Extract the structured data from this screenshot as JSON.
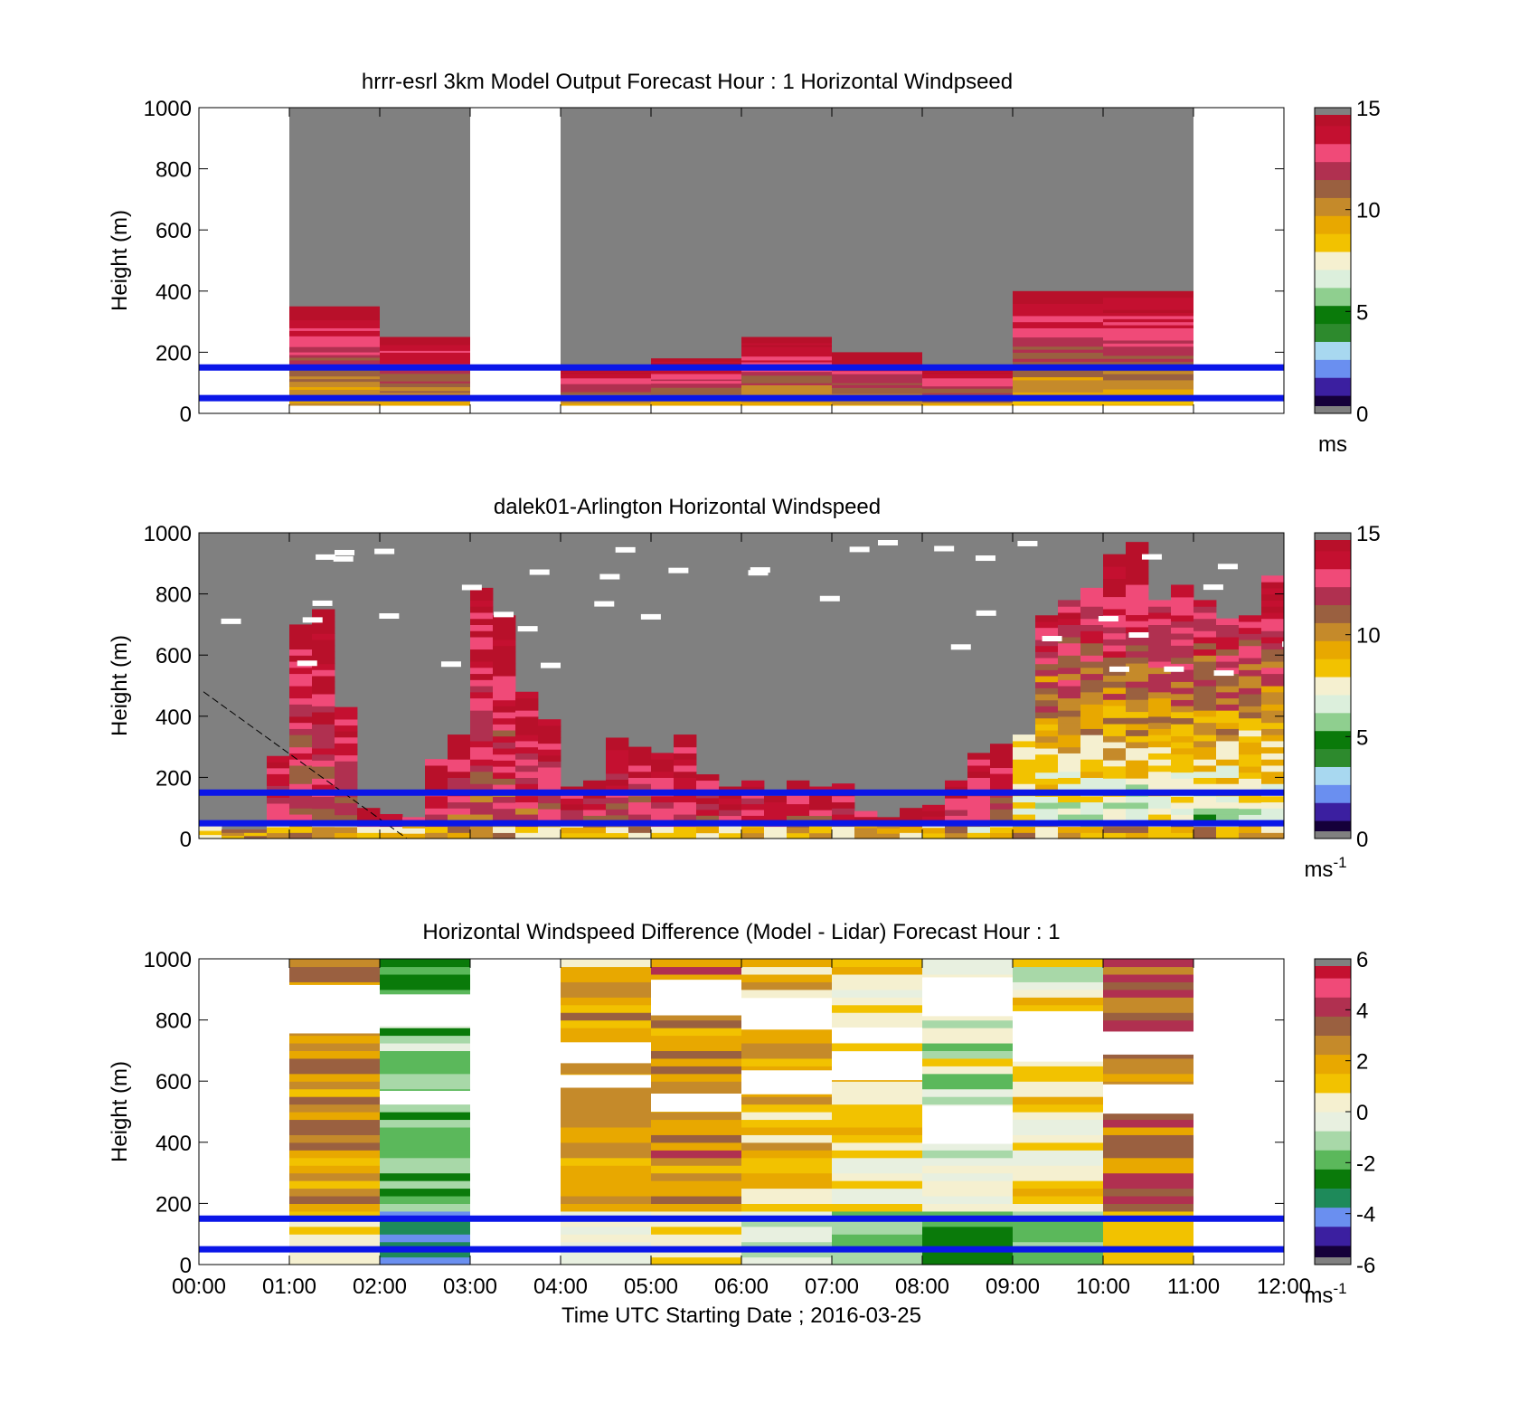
{
  "figure": {
    "xlabel": "Time UTC  Starting Date ; 2016-03-25",
    "x_ticks": [
      "00:00",
      "01:00",
      "02:00",
      "03:00",
      "04:00",
      "05:00",
      "06:00",
      "07:00",
      "08:00",
      "09:00",
      "10:00",
      "11:00",
      "12:00"
    ]
  },
  "chart_data": [
    {
      "type": "heatmap",
      "title": "hrrr-esrl 3km Model Output   Forecast Hour : 1 Horizontal Windpseed",
      "ylabel": "Height (m)",
      "xlim": [
        0,
        12
      ],
      "ylim": [
        0,
        1000
      ],
      "y_ticks": [
        0,
        200,
        400,
        600,
        800,
        1000
      ],
      "colorbar": {
        "range": [
          0,
          15
        ],
        "ticks": [
          0,
          5,
          10,
          15
        ],
        "unit_base": "ms",
        "unit_exp": "",
        "colors": [
          "#15003a",
          "#3b1fa0",
          "#6a8ff0",
          "#a8d8f0",
          "#2d8a2d",
          "#0a7a0a",
          "#8fcf8f",
          "#dcefdc",
          "#f5f0d0",
          "#f2c200",
          "#e8a800",
          "#c58a2a",
          "#9a6040",
          "#b03050",
          "#f04a78",
          "#c41030",
          "#b8102a"
        ]
      },
      "overlay_heights_m": [
        50,
        150
      ],
      "missing_color": "#808080",
      "columns": [
        {
          "t": [
            1,
            2
          ],
          "top": 350
        },
        {
          "t": [
            2,
            3
          ],
          "top": 250
        },
        {
          "t": [
            4,
            5
          ],
          "top": 150
        },
        {
          "t": [
            5,
            6
          ],
          "top": 180
        },
        {
          "t": [
            6,
            7
          ],
          "top": 250
        },
        {
          "t": [
            7,
            8
          ],
          "top": 200
        },
        {
          "t": [
            8,
            9
          ],
          "top": 150
        },
        {
          "t": [
            9,
            10
          ],
          "top": 400
        },
        {
          "t": [
            10,
            11
          ],
          "top": 400
        }
      ],
      "gray_spans": [
        [
          1,
          3
        ],
        [
          4,
          11
        ]
      ]
    },
    {
      "type": "heatmap",
      "title": "dalek01-Arlington  Horizontal Windspeed",
      "ylabel": "Height (m)",
      "xlim": [
        0,
        12
      ],
      "ylim": [
        0,
        1000
      ],
      "y_ticks": [
        0,
        200,
        400,
        600,
        800,
        1000
      ],
      "colorbar": {
        "range": [
          0,
          15
        ],
        "ticks": [
          0,
          5,
          10,
          15
        ],
        "unit_base": "ms",
        "unit_exp": "-1",
        "colors": [
          "#15003a",
          "#3b1fa0",
          "#6a8ff0",
          "#a8d8f0",
          "#2d8a2d",
          "#0a7a0a",
          "#8fcf8f",
          "#dcefdc",
          "#f5f0d0",
          "#f2c200",
          "#e8a800",
          "#c58a2a",
          "#9a6040",
          "#b03050",
          "#f04a78",
          "#c41030",
          "#b8102a"
        ]
      },
      "overlay_heights_m": [
        50,
        150
      ],
      "missing_color": "#808080",
      "gray_spans": [
        [
          0,
          12
        ]
      ],
      "profile_tops_m": [
        40,
        30,
        30,
        270,
        700,
        750,
        430,
        100,
        80,
        70,
        260,
        340,
        820,
        730,
        480,
        390,
        170,
        190,
        330,
        300,
        280,
        340,
        210,
        170,
        190,
        140,
        190,
        170,
        180,
        90,
        70,
        100,
        110,
        190,
        280,
        310,
        340,
        730,
        780,
        820,
        930,
        970,
        780,
        830,
        780,
        720,
        730,
        860
      ]
    },
    {
      "type": "heatmap",
      "title": "Horizontal Windspeed Difference (Model - Lidar) Forecast Hour : 1",
      "ylabel": "Height (m)",
      "xlim": [
        0,
        12
      ],
      "ylim": [
        0,
        1000
      ],
      "y_ticks": [
        0,
        200,
        400,
        600,
        800,
        1000
      ],
      "colorbar": {
        "range": [
          -6,
          6
        ],
        "ticks": [
          -6,
          -4,
          -2,
          0,
          2,
          4,
          6
        ],
        "unit_base": "ms",
        "unit_exp": "-1",
        "colors": [
          "#15003a",
          "#3b1fa0",
          "#6a8ff0",
          "#1e8a5a",
          "#0a7a0a",
          "#5bb85b",
          "#a8d8a8",
          "#e8f0e0",
          "#f5f0d0",
          "#f2c200",
          "#e8a800",
          "#c58a2a",
          "#9a6040",
          "#b03050",
          "#f04a78",
          "#c41030"
        ]
      },
      "overlay_heights_m": [
        50,
        150
      ],
      "columns": [
        {
          "t": [
            1,
            2
          ],
          "top": 1000,
          "mean": 2.5
        },
        {
          "t": [
            2,
            3
          ],
          "top": 1000,
          "mean": -1.5
        },
        {
          "t": [
            4,
            5
          ],
          "top": 1000,
          "mean": 2.0
        },
        {
          "t": [
            5,
            6
          ],
          "top": 1000,
          "mean": 2.5
        },
        {
          "t": [
            6,
            7
          ],
          "top": 1000,
          "mean": 1.5
        },
        {
          "t": [
            7,
            8
          ],
          "top": 1000,
          "mean": 0.5
        },
        {
          "t": [
            8,
            9
          ],
          "top": 1000,
          "mean": -0.5
        },
        {
          "t": [
            9,
            10
          ],
          "top": 1000,
          "mean": 0.5
        },
        {
          "t": [
            10,
            11
          ],
          "top": 1000,
          "mean": 3.0
        }
      ]
    }
  ]
}
